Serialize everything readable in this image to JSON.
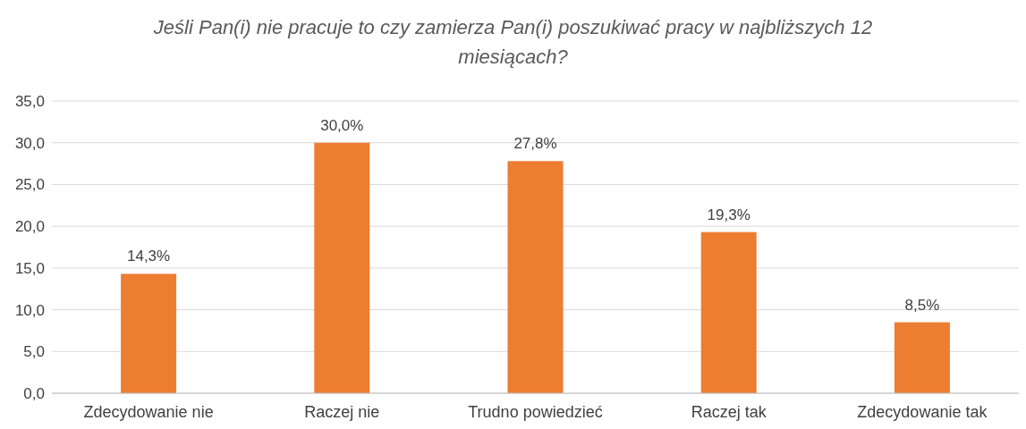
{
  "chart_data": {
    "type": "bar",
    "title": "Jeśli Pan(i) nie pracuje to czy zamierza Pan(i) poszukiwać pracy w najbliższych 12 miesiącach?",
    "categories": [
      "Zdecydowanie nie",
      "Raczej nie",
      "Trudno powiedzieć",
      "Raczej tak",
      "Zdecydowanie tak"
    ],
    "values": [
      14.3,
      30.0,
      27.8,
      19.3,
      8.5
    ],
    "value_labels": [
      "14,3%",
      "30,0%",
      "27,8%",
      "19,3%",
      "8,5%"
    ],
    "color": "#ed7d31",
    "ylim": [
      0,
      35
    ],
    "yticks": [
      {
        "value": 0,
        "label": "0,0"
      },
      {
        "value": 5,
        "label": "5,0"
      },
      {
        "value": 10,
        "label": "10,0"
      },
      {
        "value": 15,
        "label": "15,0"
      },
      {
        "value": 20,
        "label": "20,0"
      },
      {
        "value": 25,
        "label": "25,0"
      },
      {
        "value": 30,
        "label": "30,0"
      },
      {
        "value": 35,
        "label": "35,0"
      }
    ],
    "grid": "y"
  }
}
